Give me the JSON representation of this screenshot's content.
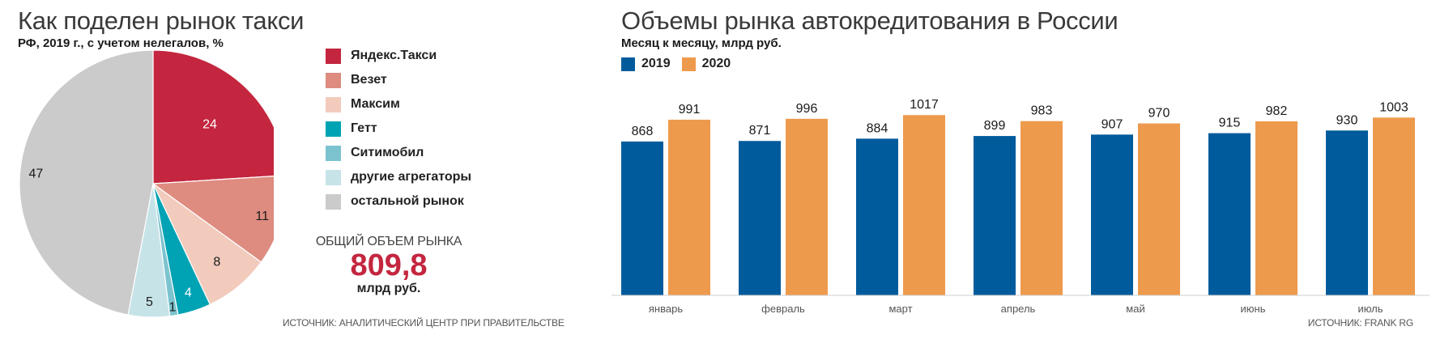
{
  "left": {
    "title": "Как поделен рынок такси",
    "subtitle": "РФ, 2019 г., с учетом нелегалов, %",
    "total_label": "ОБЩИЙ ОБЪЕМ РЫНКА",
    "total_value": "809,8",
    "total_unit": "млрд руб.",
    "source": "ИСТОЧНИК: АНАЛИТИЧЕСКИЙ ЦЕНТР ПРИ ПРАВИТЕЛЬСТВЕ"
  },
  "right": {
    "title": "Объемы рынка автокредитования в России",
    "subtitle": "Месяц к месяцу, млрд руб.",
    "source": "ИСТОЧНИК: FRANK RG"
  },
  "chart_data": [
    {
      "type": "pie",
      "title": "Как поделен рынок такси",
      "subtitle": "РФ, 2019 г., с учетом нелегалов, %",
      "slices": [
        {
          "label": "Яндекс.Такси",
          "value": 24,
          "color": "#c4263f"
        },
        {
          "label": "Везет",
          "value": 11,
          "color": "#de8b80"
        },
        {
          "label": "Максим",
          "value": 8,
          "color": "#f2cbbd"
        },
        {
          "label": "Гетт",
          "value": 4,
          "color": "#00a3b4"
        },
        {
          "label": "Ситимобил",
          "value": 1,
          "color": "#7cc3cf"
        },
        {
          "label": "другие агрегаторы",
          "value": 5,
          "color": "#c6e3e8"
        },
        {
          "label": "остальной рынок",
          "value": 47,
          "color": "#cbcbcb"
        }
      ],
      "legend_position": "right"
    },
    {
      "type": "bar",
      "title": "Объемы рынка автокредитования в России",
      "subtitle": "Месяц к месяцу, млрд руб.",
      "categories": [
        "январь",
        "февраль",
        "март",
        "апрель",
        "май",
        "июнь",
        "июль"
      ],
      "series": [
        {
          "name": "2019",
          "color": "#005b9c",
          "values": [
            868,
            871,
            884,
            899,
            907,
            915,
            930
          ]
        },
        {
          "name": "2020",
          "color": "#ee9a4d",
          "values": [
            991,
            996,
            1017,
            983,
            970,
            982,
            1003
          ]
        }
      ],
      "ylim": [
        0,
        1050
      ],
      "grid": false,
      "legend_position": "top-left"
    }
  ]
}
